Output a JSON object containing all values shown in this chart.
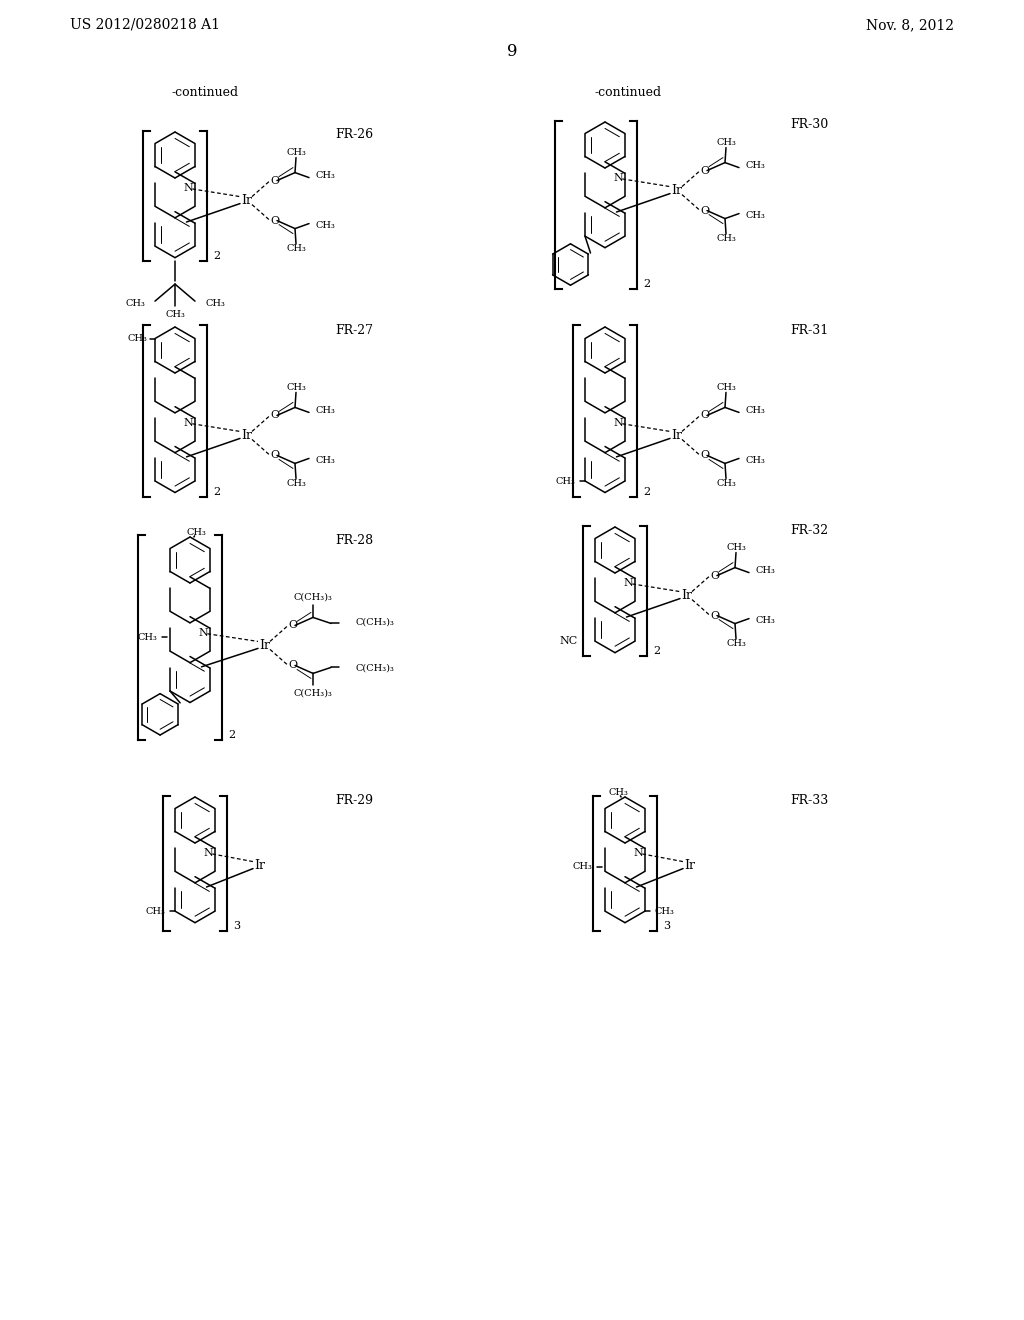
{
  "bg_color": "#ffffff",
  "header_left": "US 2012/0280218 A1",
  "header_right": "Nov. 8, 2012",
  "page_number": "9",
  "continued_left": "-continued",
  "continued_right": "-continued",
  "fr_labels": [
    "FR-26",
    "FR-27",
    "FR-28",
    "FR-29",
    "FR-30",
    "FR-31",
    "FR-32",
    "FR-33"
  ]
}
